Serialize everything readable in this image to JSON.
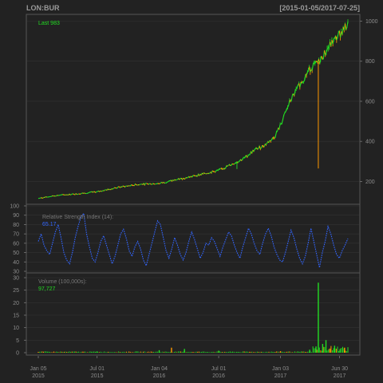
{
  "header": {
    "symbol": "LON:BUR",
    "date_range": "[2015-01-05/2017-07-25]"
  },
  "colors": {
    "background": "#222222",
    "panel_border": "#555555",
    "grid": "#333333",
    "up": "#22dd22",
    "down": "#ff9900",
    "rsi": "#3366ff",
    "text": "#8c8c8c"
  },
  "chart_data": [
    {
      "type": "line",
      "panel": "price",
      "label": "Last 983",
      "yticks": [
        200,
        400,
        600,
        800,
        1000
      ],
      "ylim": [
        110,
        1010
      ],
      "x": [
        "2015-01-05",
        "2015-03-01",
        "2015-05-01",
        "2015-07-01",
        "2015-09-01",
        "2015-11-01",
        "2016-01-04",
        "2016-03-01",
        "2016-05-01",
        "2016-07-01",
        "2016-08-15",
        "2016-09-15",
        "2016-10-15",
        "2016-11-15",
        "2016-12-15",
        "2017-01-03",
        "2017-02-01",
        "2017-03-01",
        "2017-04-01",
        "2017-05-01",
        "2017-06-01",
        "2017-06-30",
        "2017-07-25"
      ],
      "values": [
        115,
        130,
        138,
        148,
        170,
        185,
        190,
        210,
        232,
        255,
        290,
        315,
        355,
        380,
        420,
        480,
        600,
        680,
        760,
        800,
        880,
        935,
        983
      ],
      "spike_low": {
        "x": "2017-04-27",
        "value": 265
      }
    },
    {
      "type": "line",
      "panel": "rsi",
      "label": "Relative Strength Index (14):",
      "value_label": "65.17",
      "yticks": [
        30,
        40,
        50,
        60,
        70,
        80,
        90,
        100
      ],
      "ylim": [
        30,
        100
      ],
      "values": [
        62,
        70,
        58,
        52,
        48,
        60,
        72,
        80,
        66,
        50,
        42,
        38,
        50,
        66,
        78,
        88,
        92,
        70,
        56,
        44,
        40,
        50,
        62,
        68,
        58,
        48,
        38,
        46,
        58,
        70,
        75,
        65,
        52,
        46,
        56,
        62,
        54,
        42,
        36,
        48,
        60,
        72,
        84,
        80,
        66,
        52,
        44,
        54,
        66,
        58,
        48,
        42,
        50,
        62,
        72,
        64,
        54,
        44,
        50,
        60,
        58,
        66,
        62,
        54,
        46,
        56,
        64,
        72,
        68,
        58,
        50,
        44,
        56,
        66,
        76,
        70,
        60,
        52,
        48,
        60,
        70,
        76,
        68,
        56,
        48,
        42,
        40,
        50,
        62,
        74,
        66,
        54,
        44,
        38,
        46,
        60,
        76,
        62,
        48,
        34,
        50,
        62,
        78,
        70,
        58,
        48,
        44,
        52,
        58,
        65
      ]
    },
    {
      "type": "bar",
      "panel": "volume",
      "label": "Volume (100,000s):",
      "value_label": "97,727",
      "yticks": [
        0,
        5,
        10,
        15,
        20,
        25,
        30
      ],
      "ylim": [
        0,
        30
      ],
      "x": [
        "2015-01-05",
        "2015-07-01",
        "2016-01-04",
        "2016-02-10",
        "2016-03-20",
        "2016-07-01",
        "2017-01-03",
        "2017-04-01",
        "2017-04-20",
        "2017-04-27",
        "2017-05-10",
        "2017-05-20",
        "2017-06-01",
        "2017-06-15",
        "2017-07-01",
        "2017-07-15"
      ],
      "values": [
        0.3,
        0.5,
        1.0,
        2.0,
        1.5,
        0.8,
        0.6,
        1.2,
        2.5,
        28.0,
        3.5,
        5.0,
        1.5,
        2.8,
        1.2,
        2.0
      ]
    }
  ],
  "x_axis": {
    "ticks": [
      {
        "line1": "Jan 05",
        "line2": "2015",
        "date": "2015-01-05"
      },
      {
        "line1": "Jul 01",
        "line2": "2015",
        "date": "2015-07-01"
      },
      {
        "line1": "Jan 04",
        "line2": "2016",
        "date": "2016-01-04"
      },
      {
        "line1": "Jul 01",
        "line2": "2016",
        "date": "2016-07-01"
      },
      {
        "line1": "Jan 03",
        "line2": "2017",
        "date": "2017-01-03"
      },
      {
        "line1": "Jun 30",
        "line2": "2017",
        "date": "2017-06-30"
      }
    ]
  }
}
